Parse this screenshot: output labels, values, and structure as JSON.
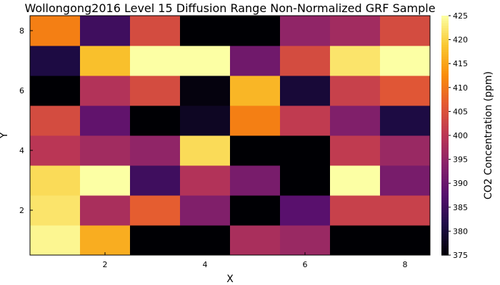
{
  "chart_data": {
    "type": "heatmap",
    "title": "Wollongong2016 Level 15 Diffusion Range Non-Normalized GRF Sample",
    "xlabel": "X",
    "ylabel": "Y",
    "x": [
      1,
      2,
      3,
      4,
      5,
      6,
      7,
      8
    ],
    "y": [
      1,
      2,
      3,
      4,
      5,
      6,
      7,
      8
    ],
    "xlim": [
      0.5,
      8.5
    ],
    "ylim": [
      0.5,
      8.5
    ],
    "xticks": [
      2,
      4,
      6,
      8
    ],
    "yticks": [
      2,
      4,
      6,
      8
    ],
    "z_rows_by_y": [
      [
        424,
        416,
        375,
        375,
        398,
        396,
        375,
        375
      ],
      [
        422,
        398,
        407,
        393,
        375,
        388,
        402,
        402
      ],
      [
        421,
        425,
        385,
        399,
        392,
        375,
        425,
        392
      ],
      [
        400,
        397,
        395,
        421,
        375,
        375,
        401,
        396
      ],
      [
        404,
        389,
        375,
        378,
        411,
        401,
        393,
        381
      ],
      [
        375,
        399,
        404,
        376,
        417,
        380,
        402,
        406
      ],
      [
        381,
        418,
        425,
        425,
        391,
        404,
        422,
        425
      ],
      [
        411,
        385,
        404,
        375,
        375,
        395,
        397,
        404
      ]
    ],
    "colorbar": {
      "label": "CO2 Concentration (ppm)",
      "min": 375,
      "max": 425,
      "ticks": [
        375,
        380,
        385,
        390,
        395,
        400,
        405,
        410,
        415,
        420,
        425
      ],
      "colormap": "inferno"
    },
    "grid": false
  }
}
